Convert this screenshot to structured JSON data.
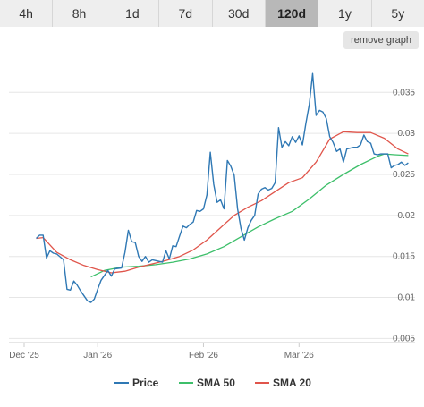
{
  "tabs": [
    {
      "label": "4h",
      "active": false
    },
    {
      "label": "8h",
      "active": false
    },
    {
      "label": "1d",
      "active": false
    },
    {
      "label": "7d",
      "active": false
    },
    {
      "label": "30d",
      "active": false
    },
    {
      "label": "120d",
      "active": true
    },
    {
      "label": "1y",
      "active": false
    },
    {
      "label": "5y",
      "active": false
    }
  ],
  "remove_button_label": "remove graph",
  "chart_data": {
    "type": "line",
    "x_ticks": [
      "Dec '25",
      "Jan '26",
      "Feb '26",
      "Mar '26"
    ],
    "y_ticks": [
      "0.005",
      "0.01",
      "0.015",
      "0.02",
      "0.025",
      "0.03",
      "0.035"
    ],
    "ylim": [
      0.0045,
      0.0395
    ],
    "xlim": [
      "2025-12-06",
      "2026-04-04"
    ],
    "grid": true,
    "legend_position": "bottom",
    "series": [
      {
        "name": "Price",
        "color": "#2f78b4",
        "x": [
          "2025-12-14",
          "2025-12-15",
          "2025-12-16",
          "2025-12-17",
          "2025-12-18",
          "2025-12-19",
          "2025-12-20",
          "2025-12-22",
          "2025-12-23",
          "2025-12-24",
          "2025-12-25",
          "2025-12-26",
          "2025-12-27",
          "2025-12-29",
          "2025-12-30",
          "2025-12-31",
          "2026-01-01",
          "2026-01-02",
          "2026-01-04",
          "2026-01-05",
          "2026-01-06",
          "2026-01-08",
          "2026-01-09",
          "2026-01-10",
          "2026-01-11",
          "2026-01-12",
          "2026-01-13",
          "2026-01-14",
          "2026-01-15",
          "2026-01-16",
          "2026-01-17",
          "2026-01-18",
          "2026-01-20",
          "2026-01-21",
          "2026-01-22",
          "2026-01-23",
          "2026-01-24",
          "2026-01-25",
          "2026-01-26",
          "2026-01-27",
          "2026-01-28",
          "2026-01-29",
          "2026-01-30",
          "2026-01-31",
          "2026-02-01",
          "2026-02-02",
          "2026-02-03",
          "2026-02-04",
          "2026-02-05",
          "2026-02-06",
          "2026-02-07",
          "2026-02-08",
          "2026-02-09",
          "2026-02-10",
          "2026-02-11",
          "2026-02-12",
          "2026-02-13",
          "2026-02-14",
          "2026-02-15",
          "2026-02-16",
          "2026-02-17",
          "2026-02-18",
          "2026-02-19",
          "2026-02-20",
          "2026-02-21",
          "2026-02-22",
          "2026-02-23",
          "2026-02-24",
          "2026-02-25",
          "2026-02-26",
          "2026-02-27",
          "2026-02-28",
          "2026-03-01",
          "2026-03-02",
          "2026-03-03",
          "2026-03-04",
          "2026-03-05",
          "2026-03-06",
          "2026-03-07",
          "2026-03-08",
          "2026-03-09",
          "2026-03-10",
          "2026-03-11",
          "2026-03-12",
          "2026-03-13",
          "2026-03-14",
          "2026-03-15",
          "2026-03-17",
          "2026-03-18",
          "2026-03-19",
          "2026-03-20",
          "2026-03-21",
          "2026-03-22",
          "2026-03-23",
          "2026-03-24",
          "2026-03-25",
          "2026-03-26",
          "2026-03-27",
          "2026-03-28",
          "2026-03-29",
          "2026-03-30",
          "2026-03-31",
          "2026-04-01",
          "2026-04-02"
        ],
        "y": [
          0.0172,
          0.0176,
          0.0176,
          0.0148,
          0.0157,
          0.0154,
          0.0153,
          0.0146,
          0.011,
          0.0109,
          0.012,
          0.0115,
          0.0108,
          0.0096,
          0.0094,
          0.0098,
          0.011,
          0.0121,
          0.0133,
          0.0126,
          0.0135,
          0.0136,
          0.0155,
          0.0182,
          0.0168,
          0.0167,
          0.015,
          0.0144,
          0.015,
          0.0143,
          0.0146,
          0.0145,
          0.0143,
          0.0157,
          0.0147,
          0.0163,
          0.0162,
          0.0175,
          0.0187,
          0.0185,
          0.0189,
          0.0192,
          0.0206,
          0.0205,
          0.0208,
          0.0225,
          0.0277,
          0.0238,
          0.0216,
          0.0219,
          0.0208,
          0.0267,
          0.026,
          0.0249,
          0.0208,
          0.0184,
          0.017,
          0.0185,
          0.0194,
          0.02,
          0.0226,
          0.0232,
          0.0234,
          0.0231,
          0.0233,
          0.024,
          0.0307,
          0.0283,
          0.029,
          0.0285,
          0.0296,
          0.0289,
          0.0297,
          0.0286,
          0.0312,
          0.0335,
          0.0373,
          0.0322,
          0.0328,
          0.0326,
          0.0318,
          0.0296,
          0.0289,
          0.0278,
          0.0281,
          0.0265,
          0.0281,
          0.0283,
          0.0283,
          0.0286,
          0.0298,
          0.029,
          0.0288,
          0.0275,
          0.0274,
          0.0275,
          0.0275,
          0.0275,
          0.0258,
          0.0261,
          0.0262,
          0.0265,
          0.0261,
          0.0264
        ]
      },
      {
        "name": "SMA 50",
        "color": "#3dbf6a",
        "x": [
          "2025-12-30",
          "2026-01-03",
          "2026-01-08",
          "2026-01-13",
          "2026-01-18",
          "2026-01-23",
          "2026-01-28",
          "2026-02-02",
          "2026-02-07",
          "2026-02-12",
          "2026-02-17",
          "2026-02-22",
          "2026-02-27",
          "2026-03-04",
          "2026-03-09",
          "2026-03-14",
          "2026-03-19",
          "2026-03-24",
          "2026-03-26",
          "2026-03-29",
          "2026-04-02"
        ],
        "y": [
          0.0125,
          0.0133,
          0.0137,
          0.0138,
          0.014,
          0.0143,
          0.0147,
          0.0153,
          0.0162,
          0.0174,
          0.0186,
          0.0196,
          0.0205,
          0.022,
          0.0237,
          0.025,
          0.0262,
          0.0272,
          0.0275,
          0.0274,
          0.0273
        ]
      },
      {
        "name": "SMA 20",
        "color": "#e0554b",
        "x": [
          "2025-12-14",
          "2025-12-16",
          "2025-12-20",
          "2025-12-24",
          "2025-12-28",
          "2026-01-01",
          "2026-01-05",
          "2026-01-09",
          "2026-01-13",
          "2026-01-17",
          "2026-01-21",
          "2026-01-25",
          "2026-01-29",
          "2026-02-02",
          "2026-02-06",
          "2026-02-10",
          "2026-02-14",
          "2026-02-18",
          "2026-02-22",
          "2026-02-26",
          "2026-03-02",
          "2026-03-06",
          "2026-03-10",
          "2026-03-14",
          "2026-03-18",
          "2026-03-22",
          "2026-03-26",
          "2026-03-30",
          "2026-04-02"
        ],
        "y": [
          0.0172,
          0.0173,
          0.0155,
          0.0146,
          0.0139,
          0.0134,
          0.013,
          0.0132,
          0.0137,
          0.0141,
          0.0145,
          0.015,
          0.0158,
          0.017,
          0.0185,
          0.02,
          0.021,
          0.0218,
          0.0229,
          0.024,
          0.0246,
          0.0265,
          0.0293,
          0.0302,
          0.0301,
          0.0301,
          0.0294,
          0.0281,
          0.0275
        ]
      }
    ]
  }
}
